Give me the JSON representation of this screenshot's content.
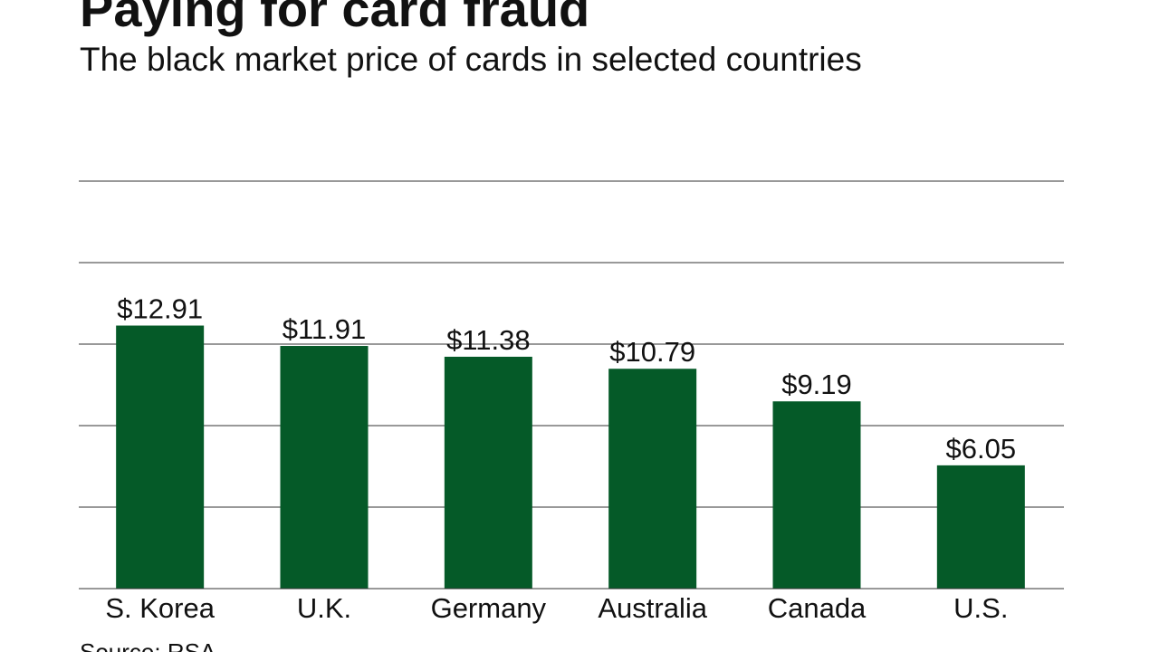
{
  "title": "Paying for card fraud",
  "subtitle": "The black market price of cards in selected countries",
  "source": "Source: RSA",
  "chart_data": {
    "type": "bar",
    "categories": [
      "S. Korea",
      "U.K.",
      "Germany",
      "Australia",
      "Canada",
      "U.S."
    ],
    "values": [
      12.91,
      11.91,
      11.38,
      10.79,
      9.19,
      6.05
    ],
    "data_labels": [
      "$12.91",
      "$11.91",
      "$11.38",
      "$10.79",
      "$9.19",
      "$6.05"
    ],
    "ylim": [
      0,
      20
    ],
    "grid": true,
    "bar_color": "#055a28",
    "gridline_color": "#333333"
  }
}
